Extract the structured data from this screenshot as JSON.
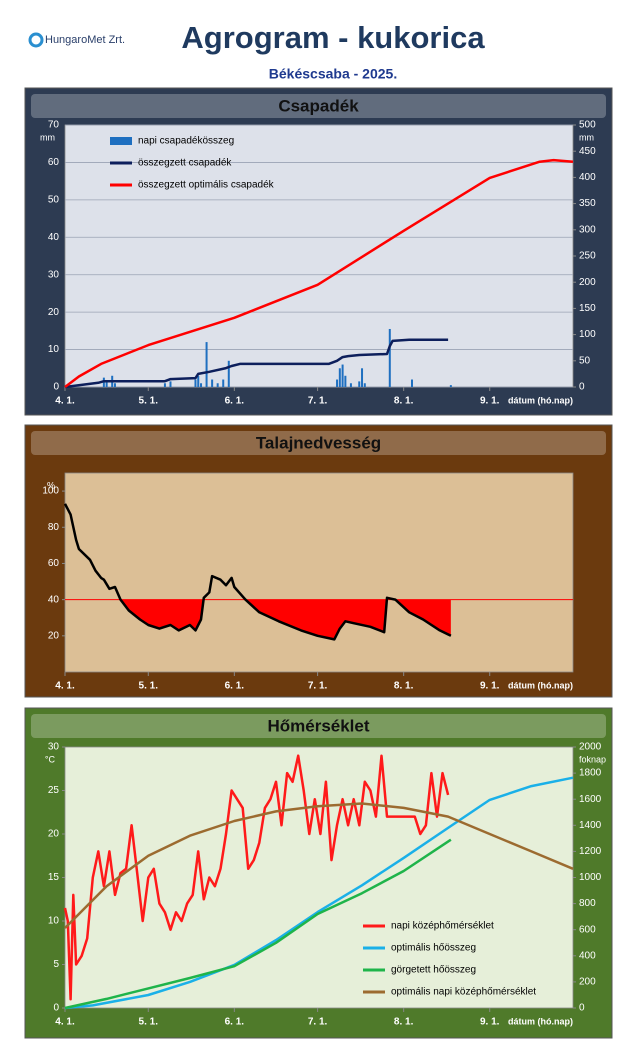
{
  "header": {
    "logo": "HungaroMet Zrt.",
    "title": "Agrogram - kukorica",
    "subtitle": "Békéscsaba - 2025."
  },
  "chart_data": [
    {
      "type": "bar",
      "title": "Csapadék",
      "y_unit": "mm",
      "y2_unit": "mm",
      "xlabel": "dátum (hó.nap)",
      "xlim": [
        0,
        183
      ],
      "xticks": [
        {
          "value": 0,
          "label": "4. 1."
        },
        {
          "value": 30,
          "label": "5. 1."
        },
        {
          "value": 61,
          "label": "6. 1."
        },
        {
          "value": 91,
          "label": "7. 1."
        },
        {
          "value": 122,
          "label": "8. 1."
        },
        {
          "value": 153,
          "label": "9. 1."
        }
      ],
      "ylim": [
        0,
        70
      ],
      "yticks": [
        0,
        10,
        20,
        30,
        40,
        50,
        60,
        70
      ],
      "y2lim": [
        0,
        500
      ],
      "y2ticks": [
        0,
        50,
        100,
        150,
        200,
        250,
        300,
        350,
        400,
        450,
        500
      ],
      "grid": true,
      "legend": "upper left",
      "background": "#dde1ea",
      "frame": "#2d3b52",
      "series": [
        {
          "name": "napi csapadékösszeg",
          "type": "bar",
          "color": "#1e6fc0",
          "x": [
            14,
            15,
            17,
            18,
            36,
            38,
            47,
            48,
            49,
            51,
            53,
            55,
            57,
            59,
            98,
            99,
            100,
            101,
            103,
            106,
            107,
            108,
            117,
            125,
            139
          ],
          "values": [
            2.5,
            1.5,
            3,
            1,
            1,
            1.5,
            2,
            3,
            1,
            12,
            2,
            1,
            2,
            7,
            2,
            5,
            6,
            3,
            1,
            1.5,
            5,
            1,
            15.5,
            2,
            0.5
          ]
        },
        {
          "name": "összegzett csapadék",
          "type": "line",
          "axis": "y2",
          "color": "#0d1f5c",
          "x": [
            0,
            12,
            14,
            36,
            38,
            47,
            48,
            52,
            58,
            60,
            63,
            95,
            98,
            100,
            102,
            106,
            116,
            117,
            118,
            124,
            138
          ],
          "values": [
            0,
            8,
            11,
            11,
            15,
            17,
            25,
            29,
            36,
            40,
            44,
            44,
            50,
            57,
            59,
            61,
            63,
            78,
            88,
            90,
            90
          ]
        },
        {
          "name": "összegzett optimális csapadék",
          "type": "line",
          "axis": "y2",
          "color": "#ff0000",
          "x": [
            0,
            5,
            13,
            30,
            61,
            91,
            122,
            153,
            171,
            176,
            183
          ],
          "values": [
            0,
            20,
            44,
            80,
            132,
            195,
            298,
            399,
            430,
            433,
            430
          ]
        }
      ]
    },
    {
      "type": "line",
      "title": "Talajnedvesség",
      "y_unit": "%",
      "xlabel": "dátum (hó.nap)",
      "xlim": [
        0,
        183
      ],
      "xticks": [
        {
          "value": 0,
          "label": "4. 1."
        },
        {
          "value": 30,
          "label": "5. 1."
        },
        {
          "value": 61,
          "label": "6. 1."
        },
        {
          "value": 91,
          "label": "7. 1."
        },
        {
          "value": 122,
          "label": "8. 1."
        },
        {
          "value": 153,
          "label": "9. 1."
        }
      ],
      "ylim": [
        0,
        110
      ],
      "yticks": [
        20,
        40,
        60,
        80,
        100
      ],
      "grid": false,
      "background": "#dcbf96",
      "frame": "#6b3a0e",
      "threshold": 40,
      "threshold_color": "#ff0000",
      "series": [
        {
          "type": "line",
          "color": "#000000",
          "fill_below_threshold": "#ff0000",
          "x": [
            0,
            2,
            4,
            5,
            9,
            11,
            13,
            14,
            16,
            18,
            20,
            23,
            27,
            30,
            34,
            38,
            41,
            45,
            47,
            49,
            50,
            52,
            53,
            56,
            58,
            60,
            61,
            65,
            70,
            77,
            85,
            91,
            97,
            99,
            101,
            104,
            110,
            115,
            116,
            119,
            124,
            129,
            135,
            139
          ],
          "values": [
            93,
            87,
            73,
            68,
            62,
            56,
            52,
            51,
            46,
            47,
            40,
            34,
            29,
            26,
            24,
            26,
            23,
            26,
            23,
            29,
            41,
            44,
            53,
            51,
            48,
            52,
            47,
            40,
            33,
            28,
            23,
            20,
            18,
            24,
            28,
            27,
            25,
            22,
            41,
            40,
            33,
            29,
            23,
            20
          ]
        }
      ]
    },
    {
      "type": "line",
      "title": "Hőmérséklet",
      "y_unit": "°C",
      "y2_unit": "foknap",
      "xlabel": "dátum (hó.nap)",
      "xlim": [
        0,
        183
      ],
      "xticks": [
        {
          "value": 0,
          "label": "4. 1."
        },
        {
          "value": 30,
          "label": "5. 1."
        },
        {
          "value": 61,
          "label": "6. 1."
        },
        {
          "value": 91,
          "label": "7. 1."
        },
        {
          "value": 122,
          "label": "8. 1."
        },
        {
          "value": 153,
          "label": "9. 1."
        }
      ],
      "ylim": [
        0,
        30
      ],
      "yticks": [
        0,
        5,
        10,
        15,
        20,
        25,
        30
      ],
      "y2lim": [
        0,
        2000
      ],
      "y2ticks": [
        0,
        200,
        400,
        600,
        800,
        1000,
        1200,
        1400,
        1600,
        1800,
        2000
      ],
      "grid": false,
      "legend": "lower right",
      "background": "#e6efd9",
      "frame": "#4f7a2a",
      "series": [
        {
          "name": "napi középhőmérséklet",
          "type": "line",
          "color": "#ff1a1a",
          "x": [
            0,
            1,
            2,
            3,
            4,
            6,
            8,
            10,
            12,
            14,
            16,
            18,
            20,
            22,
            24,
            26,
            28,
            30,
            32,
            34,
            36,
            38,
            40,
            42,
            44,
            46,
            48,
            50,
            52,
            54,
            56,
            58,
            60,
            62,
            64,
            66,
            68,
            70,
            72,
            74,
            76,
            78,
            80,
            82,
            84,
            86,
            88,
            90,
            92,
            94,
            96,
            98,
            100,
            102,
            104,
            106,
            108,
            110,
            112,
            114,
            116,
            118,
            120,
            122,
            124,
            126,
            128,
            130,
            132,
            134,
            136,
            138
          ],
          "values": [
            11.5,
            10,
            1,
            13,
            5,
            6,
            8,
            15,
            18,
            14,
            18,
            13,
            15.5,
            16,
            21,
            15.5,
            10,
            15,
            16,
            12,
            11,
            9,
            11,
            10,
            12,
            13,
            18,
            12.5,
            15,
            14,
            16,
            20,
            25,
            24,
            23,
            16,
            17,
            19,
            23,
            24,
            26,
            21,
            27,
            26,
            29,
            25,
            20,
            24,
            20,
            26,
            17,
            21,
            24,
            21,
            24,
            21,
            26,
            25,
            22,
            29,
            22,
            22,
            22,
            22,
            22,
            22,
            20,
            21,
            27,
            22,
            27,
            24.5
          ]
        },
        {
          "name": "optimális hőösszeg",
          "type": "line",
          "axis": "y2",
          "color": "#1ab0e8",
          "x": [
            0,
            10,
            30,
            45,
            61,
            76,
            91,
            107,
            122,
            138,
            153,
            168,
            183
          ],
          "values": [
            0,
            20,
            100,
            200,
            330,
            520,
            735,
            940,
            1150,
            1380,
            1595,
            1700,
            1765
          ]
        },
        {
          "name": "görgetett hőösszeg",
          "type": "line",
          "axis": "y2",
          "color": "#1fb44a",
          "x": [
            0,
            15,
            30,
            45,
            61,
            76,
            91,
            107,
            122,
            139
          ],
          "values": [
            0,
            70,
            150,
            230,
            320,
            500,
            720,
            880,
            1050,
            1290
          ]
        },
        {
          "name": "optimális napi középhőmérséklet",
          "type": "line",
          "color": "#9c6b30",
          "x": [
            0,
            15,
            30,
            45,
            61,
            76,
            91,
            107,
            122,
            138,
            153,
            168,
            183
          ],
          "values": [
            9.2,
            14,
            17.5,
            19.8,
            21.5,
            22.6,
            23.2,
            23.5,
            23,
            22,
            20,
            18,
            16
          ]
        }
      ]
    }
  ]
}
